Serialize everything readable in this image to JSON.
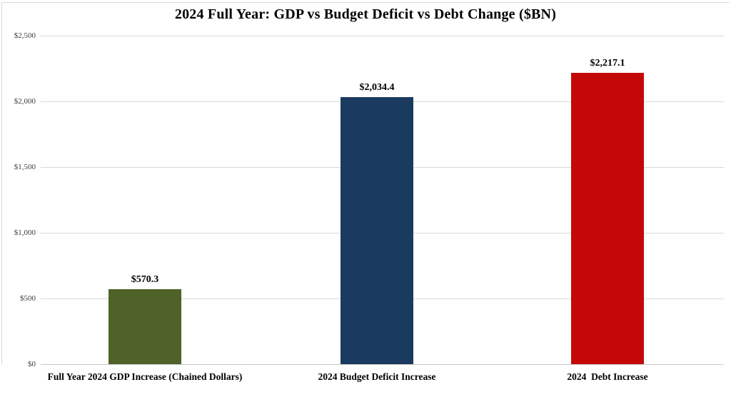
{
  "title": "2024 Full Year: GDP vs Budget Deficit vs Debt Change ($BN)",
  "chart_data": {
    "type": "bar",
    "title": "2024 Full Year: GDP vs Budget Deficit vs Debt Change ($BN)",
    "categories": [
      "Full Year 2024 GDP Increase (Chained Dollars)",
      "2024 Budget Deficit Increase",
      "2024  Debt Increase"
    ],
    "values": [
      570.3,
      2034.4,
      2217.1
    ],
    "value_labels": [
      "$570.3",
      "$2,034.4",
      "$2,217.1"
    ],
    "bar_colors": [
      "#4F6228",
      "#1B3A60",
      "#C40808"
    ],
    "xlabel": "",
    "ylabel": "",
    "ylim": [
      0,
      2500
    ],
    "ytick_interval": 500,
    "ytick_labels": [
      "$0",
      "$500",
      "$1,000",
      "$1,500",
      "$2,000",
      "$2,500"
    ],
    "grid": true,
    "legend": "none",
    "gridline_color": "#D9D9D9",
    "baseline_color": "#C9C9C9",
    "border_color": "#D9D9D9",
    "background_color": "#FFFFFF"
  }
}
